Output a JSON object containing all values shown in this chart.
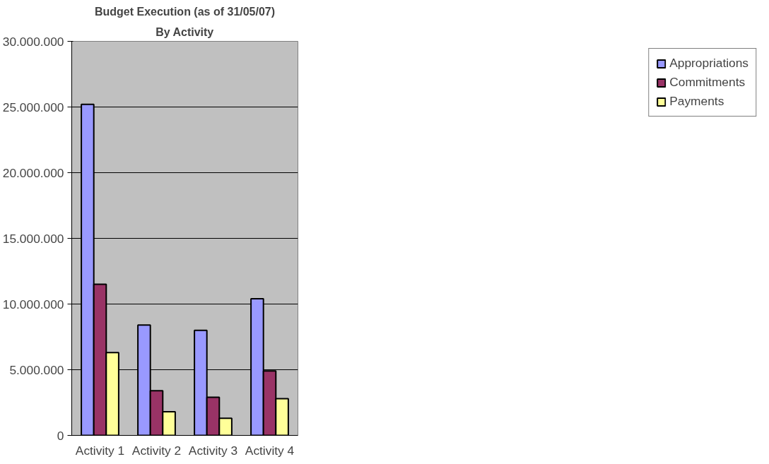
{
  "chart_data": {
    "type": "bar",
    "title": "Budget Execution (as of 31/05/07)",
    "subtitle": "By Activity",
    "categories": [
      "Activity 1",
      "Activity 2",
      "Activity 3",
      "Activity 4"
    ],
    "series": [
      {
        "name": "Appropriations",
        "color": "#9999ff",
        "values": [
          25200000,
          8400000,
          8000000,
          10400000
        ]
      },
      {
        "name": "Commitments",
        "color": "#993366",
        "values": [
          11500000,
          3400000,
          2900000,
          4900000
        ]
      },
      {
        "name": "Payments",
        "color": "#ffff99",
        "values": [
          6300000,
          1800000,
          1300000,
          2800000
        ]
      }
    ],
    "ylim": [
      0,
      30000000
    ],
    "yticks": [
      {
        "value": 0,
        "label": "0"
      },
      {
        "value": 5000000,
        "label": "5.000.000"
      },
      {
        "value": 10000000,
        "label": "10.000.000"
      },
      {
        "value": 15000000,
        "label": "15.000.000"
      },
      {
        "value": 20000000,
        "label": "20.000.000"
      },
      {
        "value": 25000000,
        "label": "25.000.000"
      },
      {
        "value": 30000000,
        "label": "30.000.000"
      }
    ],
    "grid": "y",
    "legend": "right"
  }
}
